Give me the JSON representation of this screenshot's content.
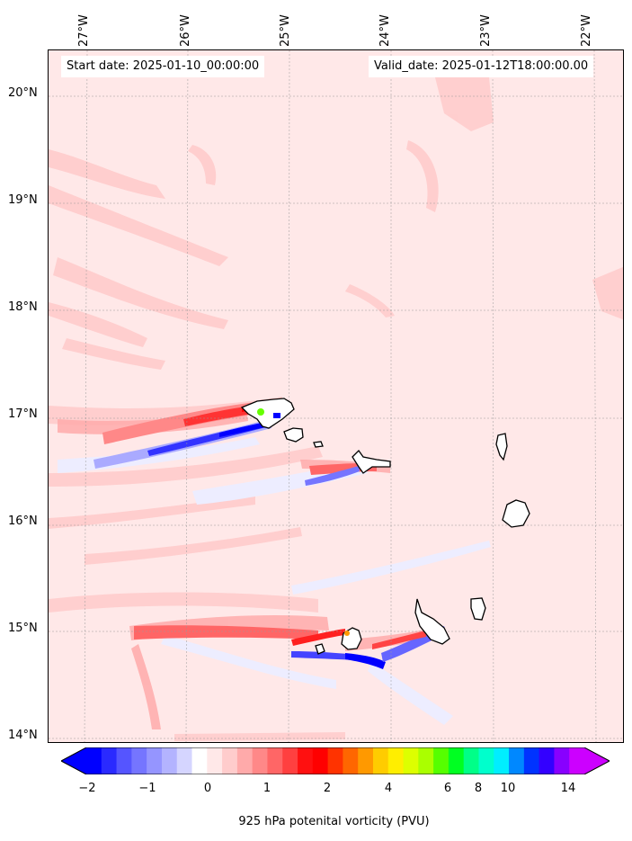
{
  "info": {
    "start_date": "Start date: 2025-01-10_00:00:00",
    "valid_date": "Valid_date: 2025-01-12T18:00:00.00"
  },
  "longitude_labels": [
    "27°W",
    "26°W",
    "25°W",
    "24°W",
    "23°W",
    "22°W"
  ],
  "latitude_labels": [
    "20°N",
    "19°N",
    "18°N",
    "17°N",
    "16°N",
    "15°N",
    "14°N"
  ],
  "colorbar": {
    "tick_labels": [
      "−2",
      "−1",
      "0",
      "1",
      "2",
      "4",
      "6",
      "8",
      "10",
      "14"
    ],
    "label": "925 hPa potenital vorticity (PVU)",
    "colors": [
      "#0000ff",
      "#2a2aff",
      "#5555ff",
      "#7575ff",
      "#9595ff",
      "#b3b3ff",
      "#d5d5ff",
      "#ffffff",
      "#ffe8e8",
      "#ffcccc",
      "#ffaaaa",
      "#ff8888",
      "#ff6666",
      "#ff4040",
      "#ff1010",
      "#ff0000",
      "#ff3300",
      "#ff6600",
      "#ff9900",
      "#ffcc00",
      "#ffee00",
      "#ddff00",
      "#aaff00",
      "#55ff00",
      "#00ff22",
      "#00ff88",
      "#00ffcc",
      "#00eeff",
      "#0088ff",
      "#0033ff",
      "#3300ff",
      "#8800ff",
      "#cc00ff"
    ]
  },
  "islands": [
    "santo-antao",
    "sao-vicente",
    "santa-luzia",
    "sao-nicolau",
    "sal",
    "boa-vista",
    "maio",
    "santiago",
    "fogo",
    "brava"
  ]
}
